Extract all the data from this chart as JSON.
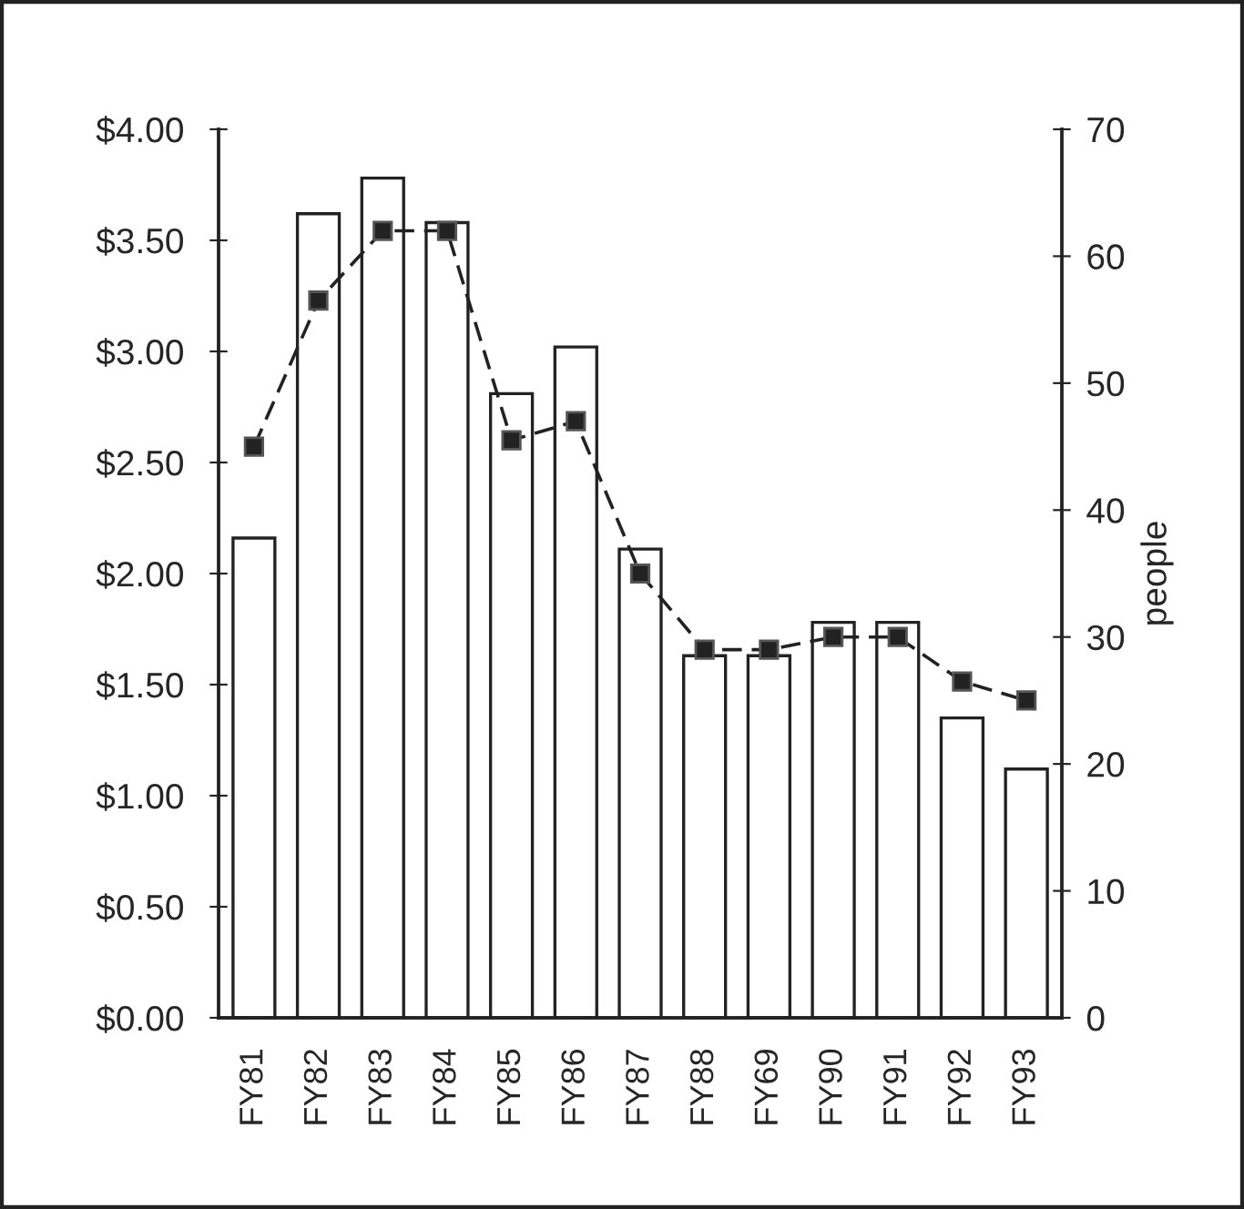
{
  "chart_data": {
    "type": "bar",
    "y2label": "people",
    "categories": [
      "FY81",
      "FY82",
      "FY83",
      "FY84",
      "FY85",
      "FY86",
      "FY87",
      "FY88",
      "FY69",
      "FY90",
      "FY91",
      "FY92",
      "FY93"
    ],
    "series": [
      {
        "color": "#ffffff",
        "values": [
          2.16,
          3.62,
          3.78,
          3.58,
          2.81,
          3.02,
          2.11,
          1.63,
          1.63,
          1.78,
          1.78,
          1.35,
          1.12
        ]
      },
      {
        "type": "line",
        "axis": "y2",
        "color": "#222222",
        "marker": "square",
        "line_style": "dashed",
        "values": [
          45,
          56.5,
          62,
          62,
          45.5,
          47,
          35,
          29,
          29,
          30,
          30,
          26.5,
          25
        ]
      }
    ],
    "ylim": [
      0,
      4
    ],
    "yticks": [
      {
        "value": 0,
        "label": "$0.00"
      },
      {
        "value": 0.5,
        "label": "$0.50"
      },
      {
        "value": 1,
        "label": "$1.00"
      },
      {
        "value": 1.5,
        "label": "$1.50"
      },
      {
        "value": 2,
        "label": "$2.00"
      },
      {
        "value": 2.5,
        "label": "$2.50"
      },
      {
        "value": 3,
        "label": "$3.00"
      },
      {
        "value": 3.5,
        "label": "$3.50"
      },
      {
        "value": 4,
        "label": "$4.00"
      }
    ],
    "y2lim": [
      0,
      70
    ],
    "y2ticks": [
      0,
      10,
      20,
      30,
      40,
      50,
      60,
      70
    ],
    "grid": false,
    "legend": false
  }
}
